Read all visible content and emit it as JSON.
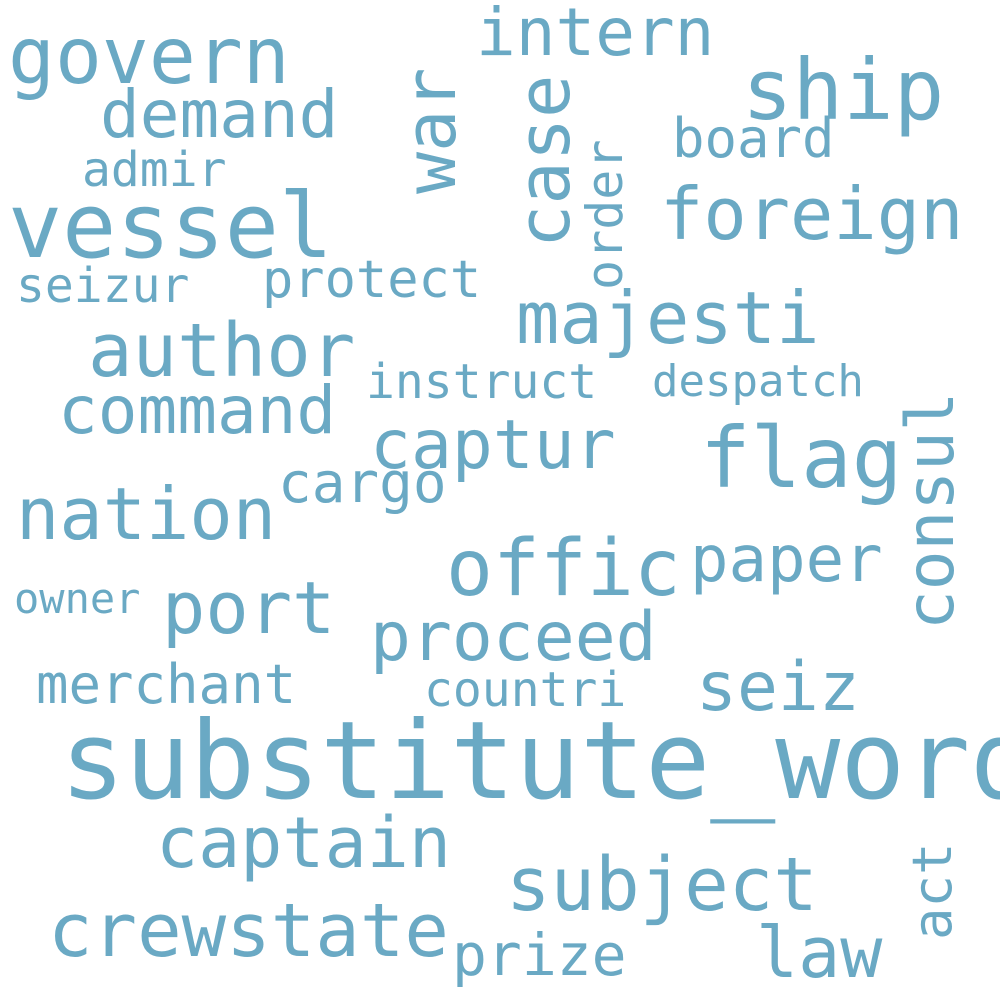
{
  "color": "#6aa9c4",
  "words": {
    "govern": "govern",
    "intern": "intern",
    "ship": "ship",
    "war": "war",
    "case": "case",
    "order": "order",
    "demand": "demand",
    "board": "board",
    "admir": "admir",
    "vessel": "vessel",
    "foreign": "foreign",
    "seizur": "seizur",
    "protect": "protect",
    "majesti": "majesti",
    "author": "author",
    "instruct": "instruct",
    "despatch": "despatch",
    "consul": "consul",
    "command": "command",
    "captur": "captur",
    "flag": "flag",
    "nation": "nation",
    "cargo": "cargo",
    "offic": "offic",
    "paper": "paper",
    "owner": "owner",
    "port": "port",
    "proceed": "proceed",
    "merchant": "merchant",
    "countri": "countri",
    "seiz": "seiz",
    "substitute_word": "substitute_word",
    "captain": "captain",
    "subject": "subject",
    "act": "act",
    "crewstate": "crewstate",
    "prize": "prize",
    "law": "law"
  }
}
